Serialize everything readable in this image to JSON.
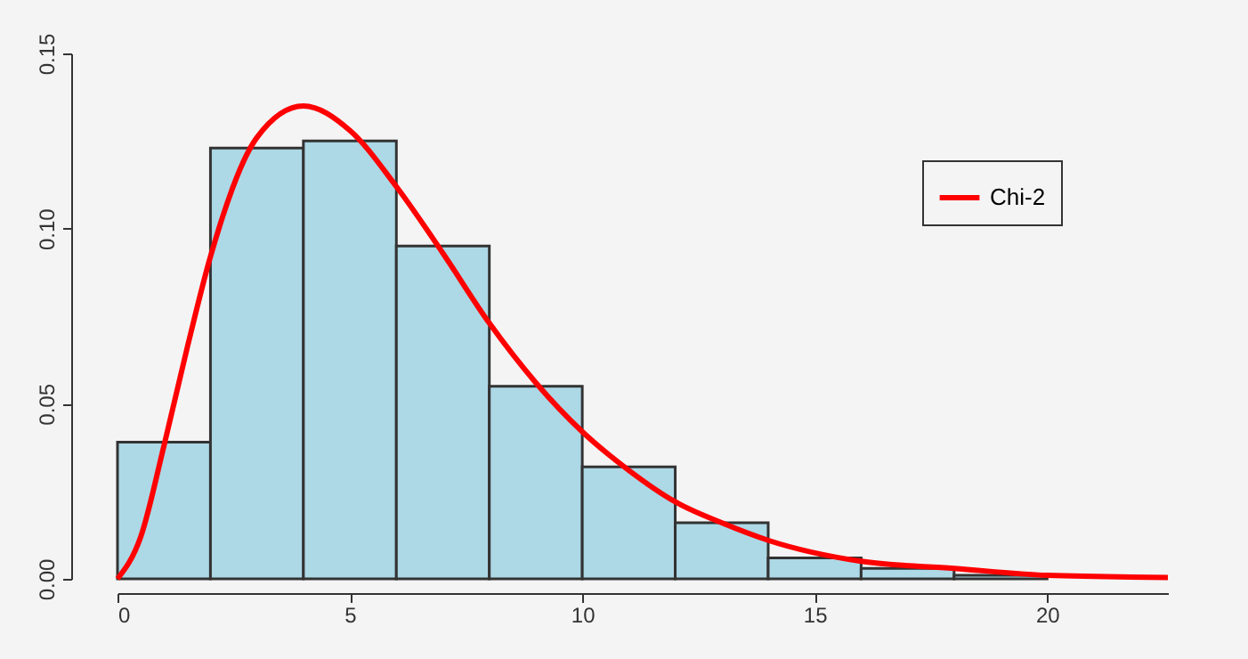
{
  "chart_data": {
    "type": "histogram",
    "bins": [
      0,
      2,
      4,
      6,
      8,
      10,
      12,
      14,
      16,
      18,
      20
    ],
    "values": [
      0.039,
      0.123,
      0.125,
      0.095,
      0.055,
      0.032,
      0.016,
      0.006,
      0.003,
      0.001
    ],
    "color": "#add8e6",
    "xlim": [
      0,
      22.6
    ],
    "xticks": [
      0,
      5,
      10,
      15,
      20
    ],
    "ylim": [
      0,
      0.15
    ],
    "yticks": [
      {
        "value": 0,
        "label": "0.00"
      },
      {
        "value": 0.05,
        "label": "0.05"
      },
      {
        "value": 0.1,
        "label": "0.10"
      },
      {
        "value": 0.15,
        "label": "0.15"
      }
    ],
    "grid": false,
    "legend": "top right",
    "series": [
      {
        "type": "line",
        "name": "Chi-2",
        "color": "#ff0000",
        "x": [
          0,
          0.5,
          1,
          1.5,
          2,
          3,
          4,
          5,
          6,
          7,
          8,
          9,
          10,
          11,
          12,
          13,
          14,
          16,
          18,
          20,
          22.6
        ],
        "values": [
          0,
          0.012,
          0.038,
          0.066,
          0.092,
          0.126,
          0.135,
          0.128,
          0.112,
          0.093,
          0.073,
          0.056,
          0.042,
          0.031,
          0.022,
          0.016,
          0.011,
          0.005,
          0.003,
          0.001,
          0.0004
        ]
      }
    ]
  }
}
